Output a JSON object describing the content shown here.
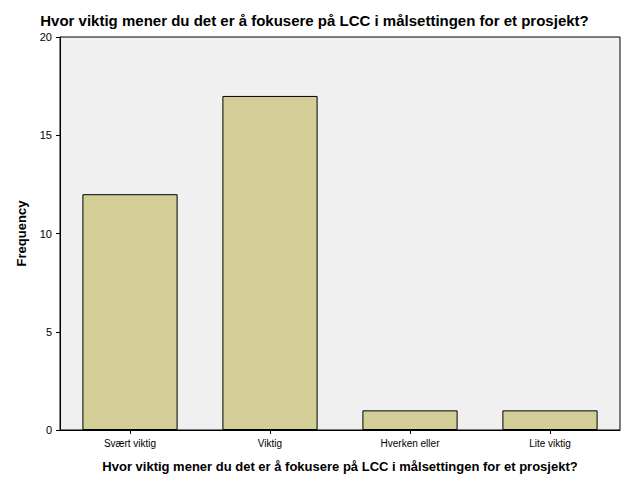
{
  "chart_data": {
    "type": "bar",
    "title": "Hvor viktig mener du det er å fokusere på LCC i målsettingen for et prosjekt?",
    "x_label": "Hvor viktig mener du det er å fokusere på LCC i målsettingen for et prosjekt?",
    "y_label": "Frequency",
    "categories": [
      "Svært viktig",
      "Viktig",
      "Hverken eller",
      "Lite viktig"
    ],
    "values": [
      12,
      17,
      1,
      1
    ],
    "color": "#d3ce97",
    "ylim": [
      0,
      20
    ],
    "yticks": [
      0,
      5,
      10,
      15,
      20
    ],
    "grid": false
  }
}
